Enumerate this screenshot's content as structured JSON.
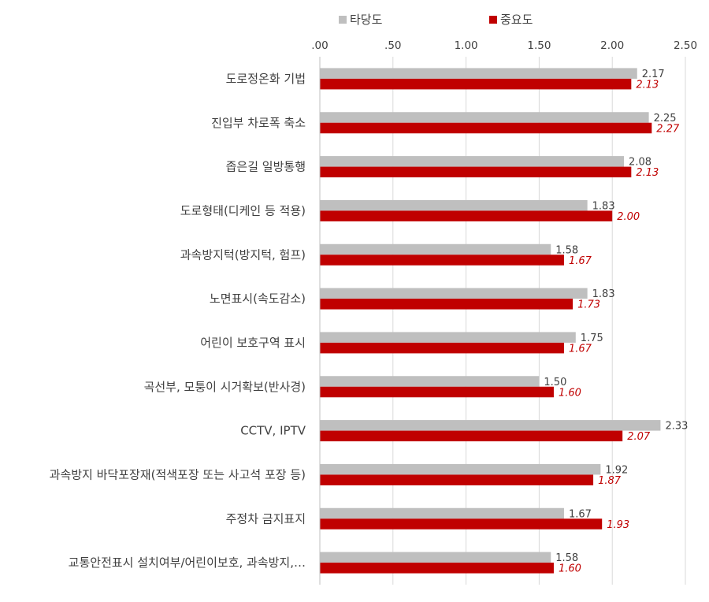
{
  "chart_data": {
    "type": "bar",
    "orientation": "horizontal",
    "title": "",
    "xlabel": "",
    "ylabel": "",
    "xlim": [
      0,
      2.5
    ],
    "ticks": [
      ".00",
      ".50",
      "1.00",
      "1.50",
      "2.00",
      "2.50"
    ],
    "tick_values": [
      0,
      0.5,
      1.0,
      1.5,
      2.0,
      2.5
    ],
    "gridlines": true,
    "legend_position": "top",
    "categories": [
      "도로정온화 기법",
      "진입부 차로폭 축소",
      "좁은길 일방통행",
      "도로형태(디케인 등 적용)",
      "과속방지턱(방지턱, 험프)",
      "노면표시(속도감소)",
      "어린이 보호구역 표시",
      "곡선부, 모퉁이 시거확보(반사경)",
      "CCTV, IPTV",
      "과속방지 바닥포장재(적색포장 또는 사고석 포장 등)",
      "주정차 금지표지",
      "교통안전표시 설치여부/어린이보호, 과속방지,…"
    ],
    "series": [
      {
        "name": "타당도",
        "color": "#bfbfbf",
        "values": [
          2.17,
          2.25,
          2.08,
          1.83,
          1.58,
          1.83,
          1.75,
          1.5,
          2.33,
          1.92,
          1.67,
          1.58
        ],
        "labels": [
          "2.17",
          "2.25",
          "2.08",
          "1.83",
          "1.58",
          "1.83",
          "1.75",
          "1.50",
          "2.33",
          "1.92",
          "1.67",
          "1.58"
        ]
      },
      {
        "name": "중요도",
        "color": "#c00000",
        "values": [
          2.13,
          2.27,
          2.13,
          2.0,
          1.67,
          1.73,
          1.67,
          1.6,
          2.07,
          1.87,
          1.93,
          1.6
        ],
        "labels": [
          "2.13",
          "2.27",
          "2.13",
          "2.00",
          "1.67",
          "1.73",
          "1.67",
          "1.60",
          "2.07",
          "1.87",
          "1.93",
          "1.60"
        ]
      }
    ]
  }
}
